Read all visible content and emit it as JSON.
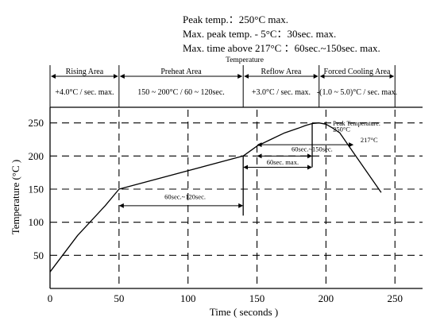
{
  "chart_data": {
    "type": "line",
    "notes": [
      "Peak temp.：250°C max.",
      "Max. peak temp. - 5°C：30sec. max.",
      "Max. time above 217°C ：60sec.~150sec. max."
    ],
    "band_title": "Temperature",
    "areas": [
      {
        "name": "Rising Area",
        "rate": "+4.0°C / sec. max.",
        "x_start": 0,
        "x_end": 50
      },
      {
        "name": "Preheat Area",
        "rate": "150 ~ 200°C / 60 ~ 120sec.",
        "x_start": 50,
        "x_end": 140
      },
      {
        "name": "Reflow Area",
        "rate": "+3.0°C / sec. max.",
        "x_start": 140,
        "x_end": 195
      },
      {
        "name": "Forced Cooling Area",
        "rate": "-(1.0 ~ 5.0)°C / sec. max.",
        "x_start": 195,
        "x_end": 250
      }
    ],
    "xlabel": "Time ( seconds )",
    "ylabel": "Temperature (°C )",
    "xlim": [
      0,
      270
    ],
    "ylim": [
      0,
      270
    ],
    "x_ticks": [
      0,
      50,
      100,
      150,
      200,
      250
    ],
    "y_ticks": [
      50,
      100,
      150,
      200,
      250
    ],
    "grid": "dashed",
    "series": [
      {
        "x": [
          0,
          20,
          40,
          50,
          140,
          150,
          160,
          170,
          180,
          185,
          190,
          195,
          200,
          205,
          210,
          220,
          230,
          240
        ],
        "y": [
          25,
          80,
          125,
          150,
          200,
          215,
          225,
          235,
          242,
          246,
          249,
          250,
          248,
          242,
          235,
          205,
          175,
          145
        ]
      }
    ],
    "annotations": [
      {
        "text": "Peak Temperature:",
        "x": 205,
        "y": 246
      },
      {
        "text": "250°C",
        "x": 205,
        "y": 237
      },
      {
        "text": "217°C",
        "x": 225,
        "y": 221
      },
      {
        "text": "60sec.~150sec.",
        "x": 175,
        "y": 207
      },
      {
        "text": "60sec. max.",
        "x": 157,
        "y": 187
      },
      {
        "text": "60sec.~120sec.",
        "x": 83,
        "y": 135
      }
    ],
    "spans": [
      {
        "x1": 50,
        "x2": 140,
        "y": 125
      },
      {
        "x1": 150,
        "x2": 190,
        "y": 200
      },
      {
        "x1": 140,
        "x2": 190,
        "y": 183
      },
      {
        "x1": 150,
        "x2": 220,
        "y": 217
      }
    ],
    "ref_lines": [
      {
        "x": 140,
        "y1": 110,
        "y2": 200
      },
      {
        "x": 190,
        "y1": 183,
        "y2": 250
      }
    ]
  }
}
